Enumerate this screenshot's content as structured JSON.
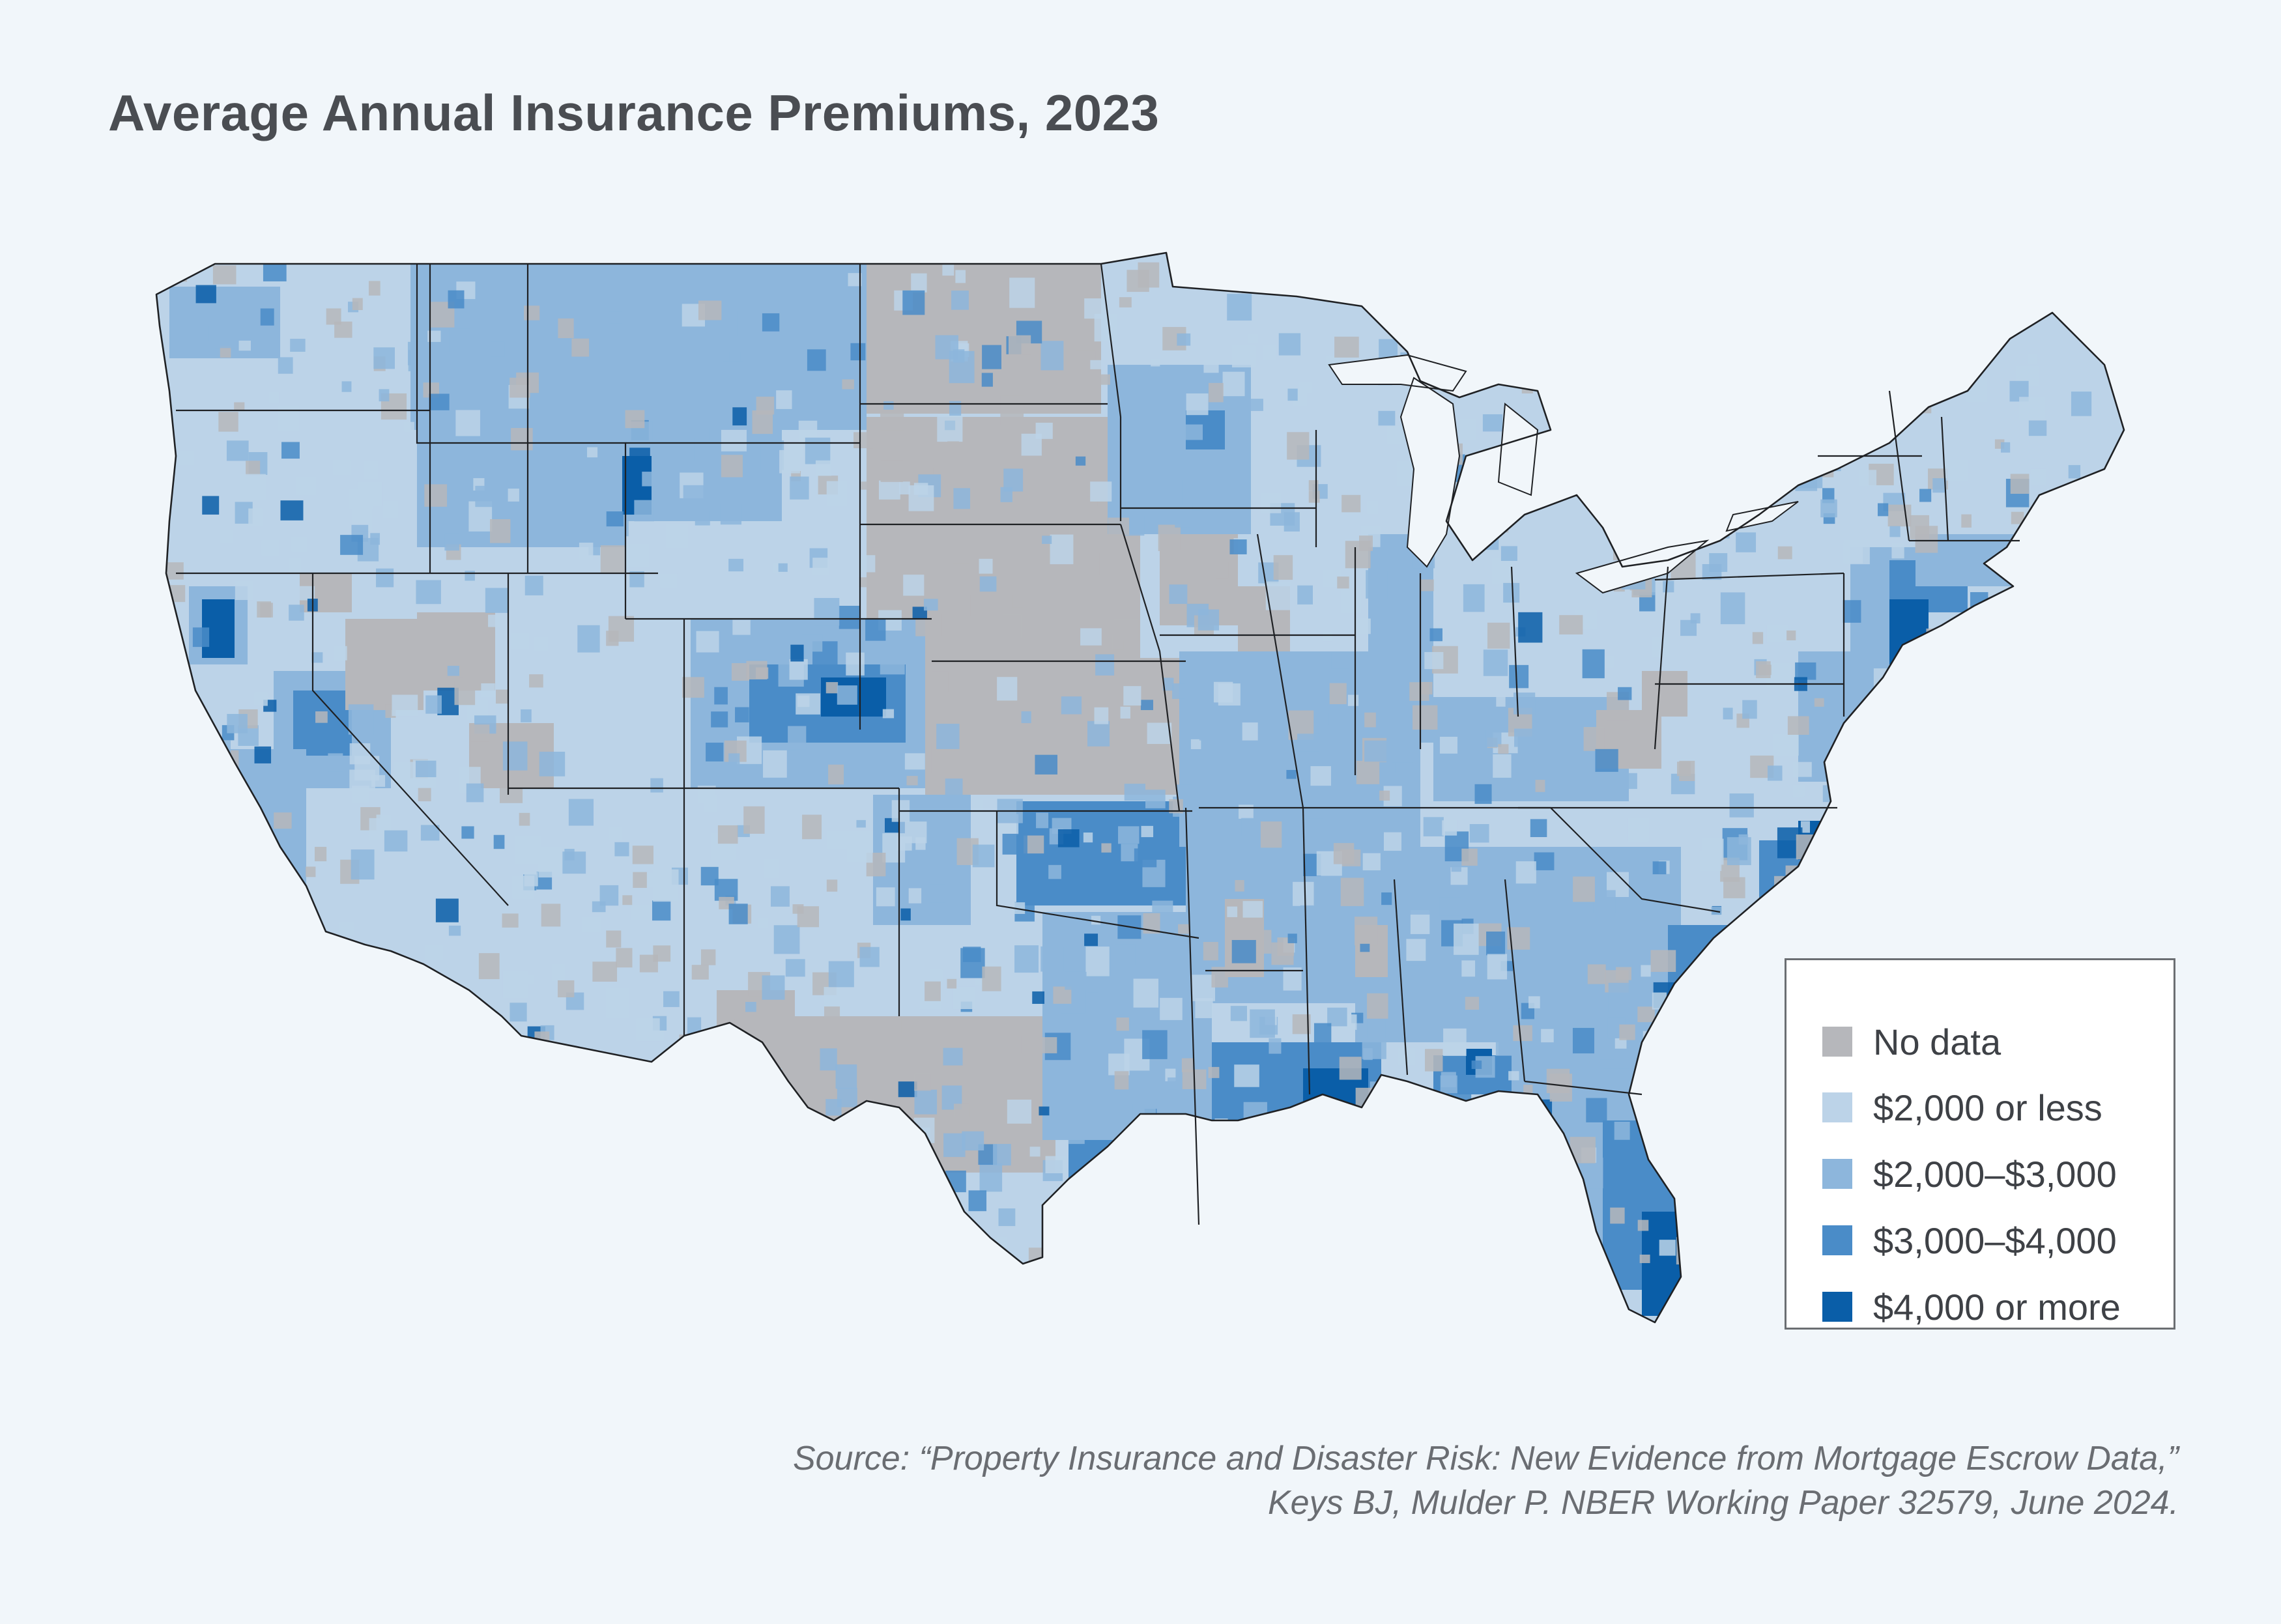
{
  "title": "Average Annual Insurance Premiums, 2023",
  "legend": {
    "items": [
      {
        "label": "No data",
        "color": "#b6b7bb"
      },
      {
        "label": "$2,000 or less",
        "color": "#bcd3e8"
      },
      {
        "label": "$2,000–$3,000",
        "color": "#8db6dc"
      },
      {
        "label": "$3,000–$4,000",
        "color": "#4a8cc8"
      },
      {
        "label": "$4,000 or more",
        "color": "#0a5ea8"
      }
    ]
  },
  "source": {
    "line1": "Source: “Property Insurance and Disaster Risk: New Evidence from Mortgage Escrow Data,”",
    "line2": "Keys BJ, Mulder P. NBER Working Paper 32579, June 2024."
  },
  "map": {
    "region": "Contiguous United States",
    "unit": "County",
    "colors": {
      "background": "#f1f6fa",
      "state_border": "#1f2124",
      "title_text": "#4a4d52",
      "source_text": "#6a6d72"
    }
  }
}
